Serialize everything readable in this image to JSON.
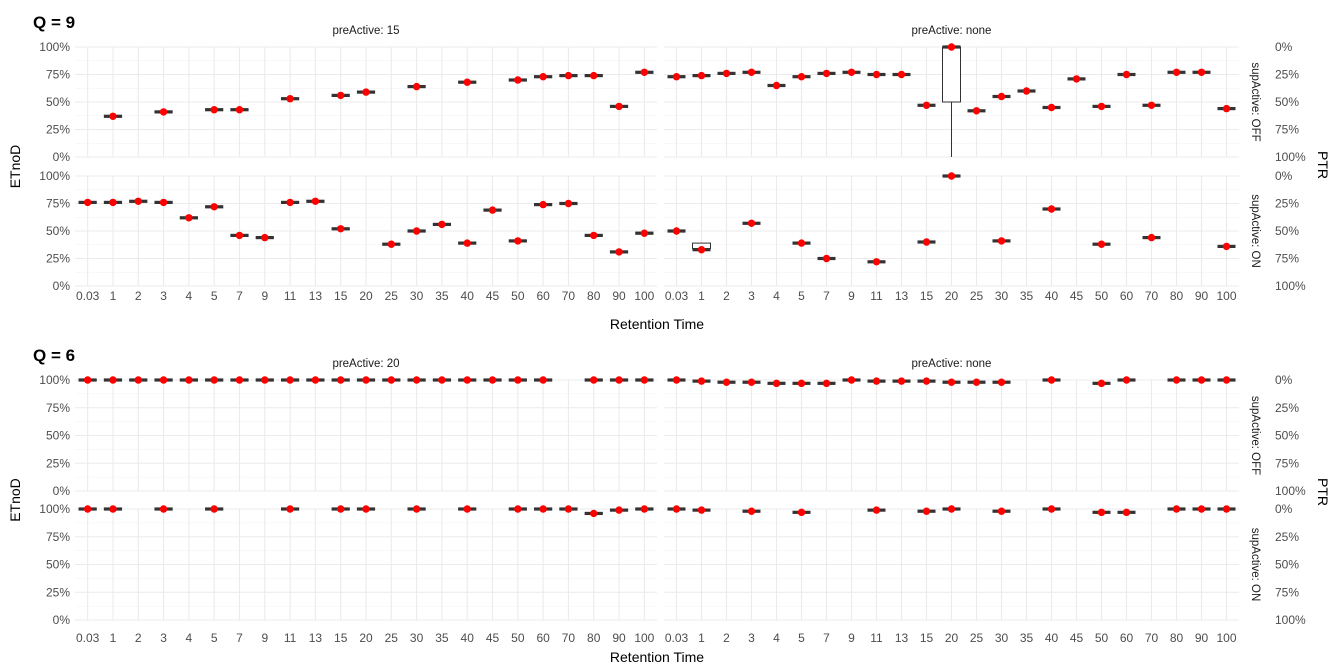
{
  "chart_data": {
    "type": "boxplot",
    "x_categories": [
      "0.03",
      "1",
      "2",
      "3",
      "4",
      "5",
      "7",
      "9",
      "11",
      "13",
      "15",
      "20",
      "25",
      "30",
      "35",
      "40",
      "45",
      "50",
      "60",
      "70",
      "80",
      "90",
      "100"
    ],
    "xlabel": "Retention Time",
    "ylabel": "ETnoD",
    "right_axis_label": "PTR",
    "left_ticks": [
      "0%",
      "25%",
      "50%",
      "75%",
      "100%"
    ],
    "right_ticks": [
      "100%",
      "75%",
      "50%",
      "25%",
      "0%"
    ],
    "ylim": [
      0,
      1
    ],
    "row_labels": [
      "supActive: OFF",
      "supActive: ON"
    ],
    "median_color": "#ff0000",
    "panels": [
      {
        "title": "Q = 9",
        "col_labels": [
          "preActive: 15",
          "preActive: none"
        ],
        "cells": [
          [
            {
              "x": [
                "1",
                "3",
                "5",
                "7",
                "11",
                "15",
                "20",
                "30",
                "40",
                "50",
                "60",
                "70",
                "80",
                "90",
                "100"
              ],
              "median": [
                0.37,
                0.41,
                0.43,
                0.43,
                0.53,
                0.56,
                0.59,
                0.64,
                0.68,
                0.7,
                0.73,
                0.74,
                0.74,
                0.46,
                0.77
              ]
            },
            {
              "x": [
                "0.03",
                "1",
                "2",
                "3",
                "4",
                "5",
                "7",
                "9",
                "11",
                "13",
                "15",
                "20",
                "25",
                "30",
                "35",
                "40",
                "45",
                "50",
                "60",
                "70",
                "80",
                "90",
                "100"
              ],
              "median": [
                0.73,
                0.74,
                0.76,
                0.77,
                0.65,
                0.73,
                0.76,
                0.77,
                0.75,
                0.75,
                0.47,
                1.0,
                0.42,
                0.55,
                0.6,
                0.45,
                0.71,
                0.46,
                0.75,
                0.47,
                0.77,
                0.77,
                0.44
              ],
              "box": {
                "x": "20",
                "q1": 0.5,
                "q3": 1.0,
                "min": 0.0,
                "max": 1.0
              }
            }
          ],
          [
            {
              "x": [
                "0.03",
                "1",
                "2",
                "3",
                "4",
                "5",
                "7",
                "9",
                "11",
                "13",
                "15",
                "25",
                "30",
                "35",
                "40",
                "45",
                "50",
                "60",
                "70",
                "80",
                "90",
                "100"
              ],
              "median": [
                0.76,
                0.76,
                0.77,
                0.76,
                0.62,
                0.72,
                0.46,
                0.44,
                0.76,
                0.77,
                0.52,
                0.38,
                0.5,
                0.56,
                0.39,
                0.69,
                0.41,
                0.74,
                0.75,
                0.46,
                0.31,
                0.48
              ]
            },
            {
              "x": [
                "0.03",
                "1",
                "3",
                "5",
                "7",
                "11",
                "15",
                "20",
                "30",
                "40",
                "50",
                "70",
                "100"
              ],
              "median": [
                0.5,
                0.33,
                0.57,
                0.39,
                0.25,
                0.22,
                0.4,
                1.0,
                0.41,
                0.7,
                0.38,
                0.44,
                0.36
              ],
              "box": {
                "x": "1",
                "q1": 0.34,
                "q3": 0.39,
                "min": 0.33,
                "max": 0.39
              }
            }
          ]
        ]
      },
      {
        "title": "Q = 6",
        "col_labels": [
          "preActive: 20",
          "preActive: none"
        ],
        "cells": [
          [
            {
              "x": [
                "0.03",
                "1",
                "2",
                "3",
                "4",
                "5",
                "7",
                "9",
                "11",
                "13",
                "15",
                "20",
                "25",
                "30",
                "35",
                "40",
                "45",
                "50",
                "60",
                "80",
                "90",
                "100"
              ],
              "median": [
                1.0,
                1.0,
                1.0,
                1.0,
                1.0,
                1.0,
                1.0,
                1.0,
                1.0,
                1.0,
                1.0,
                1.0,
                1.0,
                1.0,
                1.0,
                1.0,
                1.0,
                1.0,
                1.0,
                1.0,
                1.0,
                1.0
              ]
            },
            {
              "x": [
                "0.03",
                "1",
                "2",
                "3",
                "4",
                "5",
                "7",
                "9",
                "11",
                "13",
                "15",
                "20",
                "25",
                "30",
                "40",
                "50",
                "60",
                "80",
                "90",
                "100"
              ],
              "median": [
                1.0,
                0.99,
                0.98,
                0.98,
                0.97,
                0.97,
                0.97,
                1.0,
                0.99,
                0.99,
                0.99,
                0.98,
                0.98,
                0.98,
                1.0,
                0.97,
                1.0,
                1.0,
                1.0,
                1.0
              ]
            }
          ],
          [
            {
              "x": [
                "0.03",
                "1",
                "3",
                "5",
                "11",
                "15",
                "20",
                "30",
                "40",
                "50",
                "60",
                "70",
                "80",
                "90",
                "100"
              ],
              "median": [
                1.0,
                1.0,
                1.0,
                1.0,
                1.0,
                1.0,
                1.0,
                1.0,
                1.0,
                1.0,
                1.0,
                1.0,
                0.96,
                0.99,
                1.0
              ]
            },
            {
              "x": [
                "0.03",
                "1",
                "3",
                "5",
                "11",
                "15",
                "20",
                "30",
                "40",
                "50",
                "60",
                "80",
                "90",
                "100"
              ],
              "median": [
                1.0,
                0.99,
                0.98,
                0.97,
                0.99,
                0.98,
                1.0,
                0.98,
                1.0,
                0.97,
                0.97,
                1.0,
                1.0,
                1.0
              ]
            }
          ]
        ]
      }
    ]
  }
}
